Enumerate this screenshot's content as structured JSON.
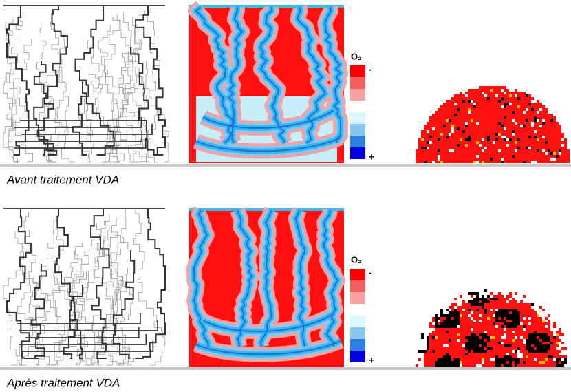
{
  "panels": [
    {
      "legend_title": "O₂",
      "legend_min": "-",
      "legend_max": "+",
      "caption": "Avant traitement VDA"
    },
    {
      "legend_title": "O₂",
      "legend_min": "-",
      "legend_max": "+",
      "caption": "Après traitement VDA"
    }
  ],
  "legend_colors": [
    "#ff0000",
    "#f26060",
    "#f9a0a0",
    "#ffffff",
    "#d8f8ff",
    "#88c8f0",
    "#2b7fe0",
    "#0000e0"
  ]
}
